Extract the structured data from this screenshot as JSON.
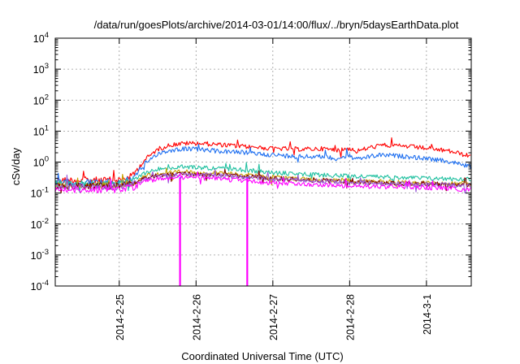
{
  "chart_data": {
    "type": "line",
    "title": "/data/run/goesPlots/archive/2014-03-01/14:00/flux/../bryn/5daysEarthData.plot",
    "xlabel": "Coordinated Universal Time (UTC)",
    "ylabel": "cSv/day",
    "y_scale": "log",
    "ylim": [
      0.0001,
      10000
    ],
    "y_ticks": [
      {
        "base": "10",
        "exp": "-4",
        "value": 0.0001
      },
      {
        "base": "10",
        "exp": "-3",
        "value": 0.001
      },
      {
        "base": "10",
        "exp": "-2",
        "value": 0.01
      },
      {
        "base": "10",
        "exp": "-1",
        "value": 0.1
      },
      {
        "base": "10",
        "exp": "0",
        "value": 1
      },
      {
        "base": "10",
        "exp": "1",
        "value": 10
      },
      {
        "base": "10",
        "exp": "2",
        "value": 100
      },
      {
        "base": "10",
        "exp": "3",
        "value": 1000
      },
      {
        "base": "10",
        "exp": "4",
        "value": 10000
      }
    ],
    "xlim": [
      "2014-02-24 04:00",
      "2014-03-01 14:00"
    ],
    "x_ticks": [
      {
        "label": "2014-2-25",
        "value": "2014-02-25 00:00"
      },
      {
        "label": "2014-2-26",
        "value": "2014-02-26 00:00"
      },
      {
        "label": "2014-2-27",
        "value": "2014-02-27 00:00"
      },
      {
        "label": "2014-2-28",
        "value": "2014-02-28 00:00"
      },
      {
        "label": "2014-3-1",
        "value": "2014-03-01 00:00"
      }
    ],
    "grid": true,
    "legend": "none",
    "series": [
      {
        "color": "#ff0000",
        "points": [
          [
            "2014-02-24 04:00",
            0.26
          ],
          [
            "2014-02-25 00:00",
            0.26
          ],
          [
            "2014-02-25 04:00",
            0.35
          ],
          [
            "2014-02-25 08:00",
            1.2
          ],
          [
            "2014-02-25 12:00",
            2.6
          ],
          [
            "2014-02-25 16:00",
            3.6
          ],
          [
            "2014-02-25 20:00",
            4.0
          ],
          [
            "2014-02-26 00:00",
            4.1
          ],
          [
            "2014-02-26 08:00",
            3.6
          ],
          [
            "2014-02-26 16:00",
            3.1
          ],
          [
            "2014-02-27 00:00",
            2.8
          ],
          [
            "2014-02-27 08:00",
            2.6
          ],
          [
            "2014-02-27 16:00",
            2.7
          ],
          [
            "2014-02-27 20:00",
            2.4
          ],
          [
            "2014-02-28 00:00",
            2.8
          ],
          [
            "2014-02-28 02:00",
            2.2
          ],
          [
            "2014-02-28 06:00",
            2.9
          ],
          [
            "2014-02-28 10:00",
            3.5
          ],
          [
            "2014-02-28 18:00",
            3.2
          ],
          [
            "2014-03-01 00:00",
            2.8
          ],
          [
            "2014-03-01 08:00",
            2.2
          ],
          [
            "2014-03-01 14:00",
            1.5
          ]
        ]
      },
      {
        "color": "#1e6ff0",
        "points": [
          [
            "2014-02-24 04:00",
            0.22
          ],
          [
            "2014-02-25 00:00",
            0.22
          ],
          [
            "2014-02-25 04:00",
            0.3
          ],
          [
            "2014-02-25 08:00",
            0.9
          ],
          [
            "2014-02-25 12:00",
            1.9
          ],
          [
            "2014-02-25 16:00",
            2.4
          ],
          [
            "2014-02-25 20:00",
            2.7
          ],
          [
            "2014-02-26 00:00",
            2.6
          ],
          [
            "2014-02-26 08:00",
            2.2
          ],
          [
            "2014-02-26 16:00",
            2.0
          ],
          [
            "2014-02-27 00:00",
            1.7
          ],
          [
            "2014-02-27 08:00",
            1.5
          ],
          [
            "2014-02-27 16:00",
            1.5
          ],
          [
            "2014-02-27 20:00",
            1.3
          ],
          [
            "2014-02-28 00:00",
            1.6
          ],
          [
            "2014-02-28 02:00",
            1.2
          ],
          [
            "2014-02-28 06:00",
            1.5
          ],
          [
            "2014-02-28 10:00",
            1.7
          ],
          [
            "2014-02-28 18:00",
            1.5
          ],
          [
            "2014-03-01 00:00",
            1.3
          ],
          [
            "2014-03-01 08:00",
            1.0
          ],
          [
            "2014-03-01 14:00",
            0.7
          ]
        ]
      },
      {
        "color": "#20c0a0",
        "points": [
          [
            "2014-02-24 04:00",
            0.2
          ],
          [
            "2014-02-25 00:00",
            0.2
          ],
          [
            "2014-02-25 04:00",
            0.25
          ],
          [
            "2014-02-25 08:00",
            0.45
          ],
          [
            "2014-02-25 12:00",
            0.6
          ],
          [
            "2014-02-25 20:00",
            0.7
          ],
          [
            "2014-02-26 04:00",
            0.65
          ],
          [
            "2014-02-26 16:00",
            0.55
          ],
          [
            "2014-02-27 00:00",
            0.45
          ],
          [
            "2014-02-27 12:00",
            0.4
          ],
          [
            "2014-02-28 00:00",
            0.35
          ],
          [
            "2014-02-28 12:00",
            0.33
          ],
          [
            "2014-03-01 00:00",
            0.3
          ],
          [
            "2014-03-01 14:00",
            0.28
          ]
        ]
      },
      {
        "color": "#c8a000",
        "points": [
          [
            "2014-02-24 04:00",
            0.18
          ],
          [
            "2014-02-25 00:00",
            0.18
          ],
          [
            "2014-02-25 04:00",
            0.22
          ],
          [
            "2014-02-25 08:00",
            0.35
          ],
          [
            "2014-02-25 12:00",
            0.42
          ],
          [
            "2014-02-25 20:00",
            0.48
          ],
          [
            "2014-02-26 04:00",
            0.45
          ],
          [
            "2014-02-26 16:00",
            0.38
          ],
          [
            "2014-02-27 00:00",
            0.32
          ],
          [
            "2014-02-27 12:00",
            0.28
          ],
          [
            "2014-02-28 00:00",
            0.25
          ],
          [
            "2014-02-28 12:00",
            0.23
          ],
          [
            "2014-03-01 00:00",
            0.21
          ],
          [
            "2014-03-01 14:00",
            0.2
          ]
        ]
      },
      {
        "color": "#800000",
        "points": [
          [
            "2014-02-24 04:00",
            0.17
          ],
          [
            "2014-02-25 00:00",
            0.17
          ],
          [
            "2014-02-25 04:00",
            0.2
          ],
          [
            "2014-02-25 08:00",
            0.32
          ],
          [
            "2014-02-25 12:00",
            0.38
          ],
          [
            "2014-02-25 20:00",
            0.42
          ],
          [
            "2014-02-26 04:00",
            0.4
          ],
          [
            "2014-02-26 16:00",
            0.34
          ],
          [
            "2014-02-27 00:00",
            0.3
          ],
          [
            "2014-02-27 12:00",
            0.26
          ],
          [
            "2014-02-28 00:00",
            0.23
          ],
          [
            "2014-02-28 12:00",
            0.21
          ],
          [
            "2014-03-01 00:00",
            0.2
          ],
          [
            "2014-03-01 14:00",
            0.18
          ]
        ]
      },
      {
        "color": "#9a5ad8",
        "points": [
          [
            "2014-02-24 04:00",
            0.16
          ],
          [
            "2014-02-25 00:00",
            0.16
          ],
          [
            "2014-02-25 04:00",
            0.19
          ],
          [
            "2014-02-25 08:00",
            0.3
          ],
          [
            "2014-02-25 12:00",
            0.36
          ],
          [
            "2014-02-25 20:00",
            0.4
          ],
          [
            "2014-02-26 04:00",
            0.38
          ],
          [
            "2014-02-26 16:00",
            0.32
          ],
          [
            "2014-02-27 00:00",
            0.28
          ],
          [
            "2014-02-27 12:00",
            0.25
          ],
          [
            "2014-02-28 00:00",
            0.22
          ],
          [
            "2014-02-28 12:00",
            0.2
          ],
          [
            "2014-03-01 00:00",
            0.19
          ],
          [
            "2014-03-01 14:00",
            0.17
          ]
        ]
      },
      {
        "color": "#ff00ff",
        "points": [
          [
            "2014-02-24 04:00",
            0.13
          ],
          [
            "2014-02-25 00:00",
            0.13
          ],
          [
            "2014-02-25 04:00",
            0.15
          ],
          [
            "2014-02-25 08:00",
            0.24
          ],
          [
            "2014-02-25 12:00",
            0.28
          ],
          [
            "2014-02-25 20:00",
            0.32
          ],
          [
            "2014-02-26 04:00",
            0.3
          ],
          [
            "2014-02-26 16:00",
            0.25
          ],
          [
            "2014-02-27 00:00",
            0.21
          ],
          [
            "2014-02-27 12:00",
            0.19
          ],
          [
            "2014-02-28 00:00",
            0.17
          ],
          [
            "2014-02-28 12:00",
            0.16
          ],
          [
            "2014-03-01 00:00",
            0.15
          ],
          [
            "2014-03-01 14:00",
            0.13
          ]
        ]
      }
    ],
    "drops": [
      {
        "color": "#ff00ff",
        "x": "2014-02-25 19:00",
        "value": 0.0001
      },
      {
        "color": "#ff00ff",
        "x": "2014-02-26 16:00",
        "value": 0.0001
      },
      {
        "color": "#1e6ff0",
        "x": "2014-02-25 19:00",
        "value": 0.3
      },
      {
        "color": "#1e6ff0",
        "x": "2014-02-26 16:00",
        "value": 0.3
      }
    ]
  }
}
